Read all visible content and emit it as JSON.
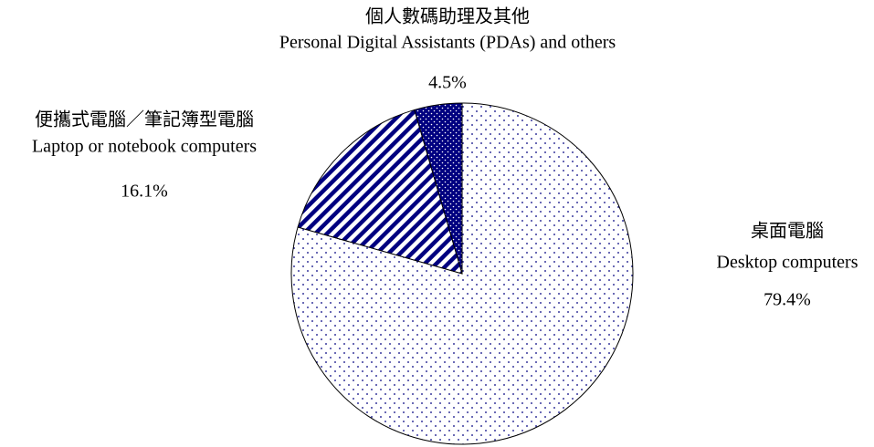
{
  "chart_data": {
    "type": "pie",
    "categories": [
      [
        "桌面電腦",
        "Desktop computers"
      ],
      [
        "便攜式電腦／筆記簿型電腦",
        "Laptop or notebook computers"
      ],
      [
        "個人數碼助理及其他",
        "Personal Digital Assistants (PDAs) and others"
      ]
    ],
    "values": [
      79.4,
      16.1,
      4.5
    ],
    "value_labels": [
      "79.4%",
      "16.1%",
      "4.5%"
    ],
    "colors": [
      "#000080",
      "#000080",
      "#000080"
    ],
    "patterns": [
      "sparse-dots",
      "diagonal-stripes",
      "dense-dots"
    ]
  }
}
